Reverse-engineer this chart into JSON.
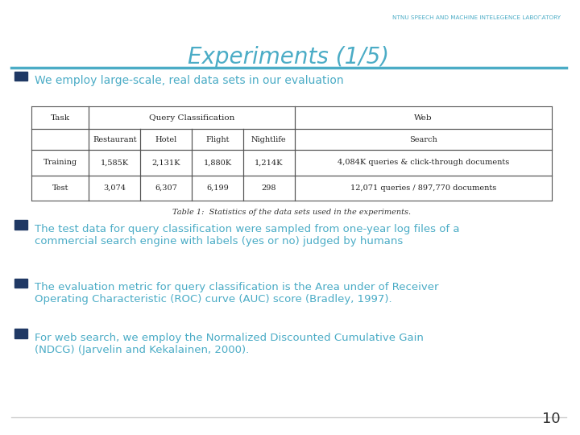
{
  "title": "Experiments (1/5)",
  "header_label": "NTNU SPEECH AND MACHINE INTELEGENCE LABORATORY",
  "title_color": "#4bacc6",
  "header_line_color": "#4bacc6",
  "bullet_color": "#1f3864",
  "text_color": "#4bacc6",
  "body_text_color": "#4bacc6",
  "bg_color": "#ffffff",
  "bullet1": "We employ large-scale, real data sets in our evaluation",
  "bullet2": "The test data for query classification were sampled from one-year log files of a\ncommercial search engine with labels (yes or no) judged by humans",
  "bullet3": "The evaluation metric for query classification is the Area under of Receiver\nOperating Characteristic (ROC) curve (AUC) score (Bradley, 1997).",
  "bullet4": "For web search, we employ the Normalized Discounted Cumulative Gain\n(NDCG) (Jarvelin and Kekalainen, 2000).",
  "page_number": "10",
  "table_caption": "Table 1:  Statistics of the data sets used in the experiments.",
  "table_headers_row1": [
    "Task",
    "Query Classification",
    "",
    "",
    "",
    "Web"
  ],
  "table_headers_row2": [
    "",
    "Restaurant",
    "Hotel",
    "Flight",
    "Nightlife",
    "Search"
  ],
  "table_data": [
    [
      "Training",
      "1,585K",
      "2,131K",
      "1,880K",
      "1,214K",
      "4,084K queries & click-through documents"
    ],
    [
      "Test",
      "3,074",
      "6,307",
      "6,199",
      "298",
      "12,071 queries / 897,770 documents"
    ]
  ]
}
